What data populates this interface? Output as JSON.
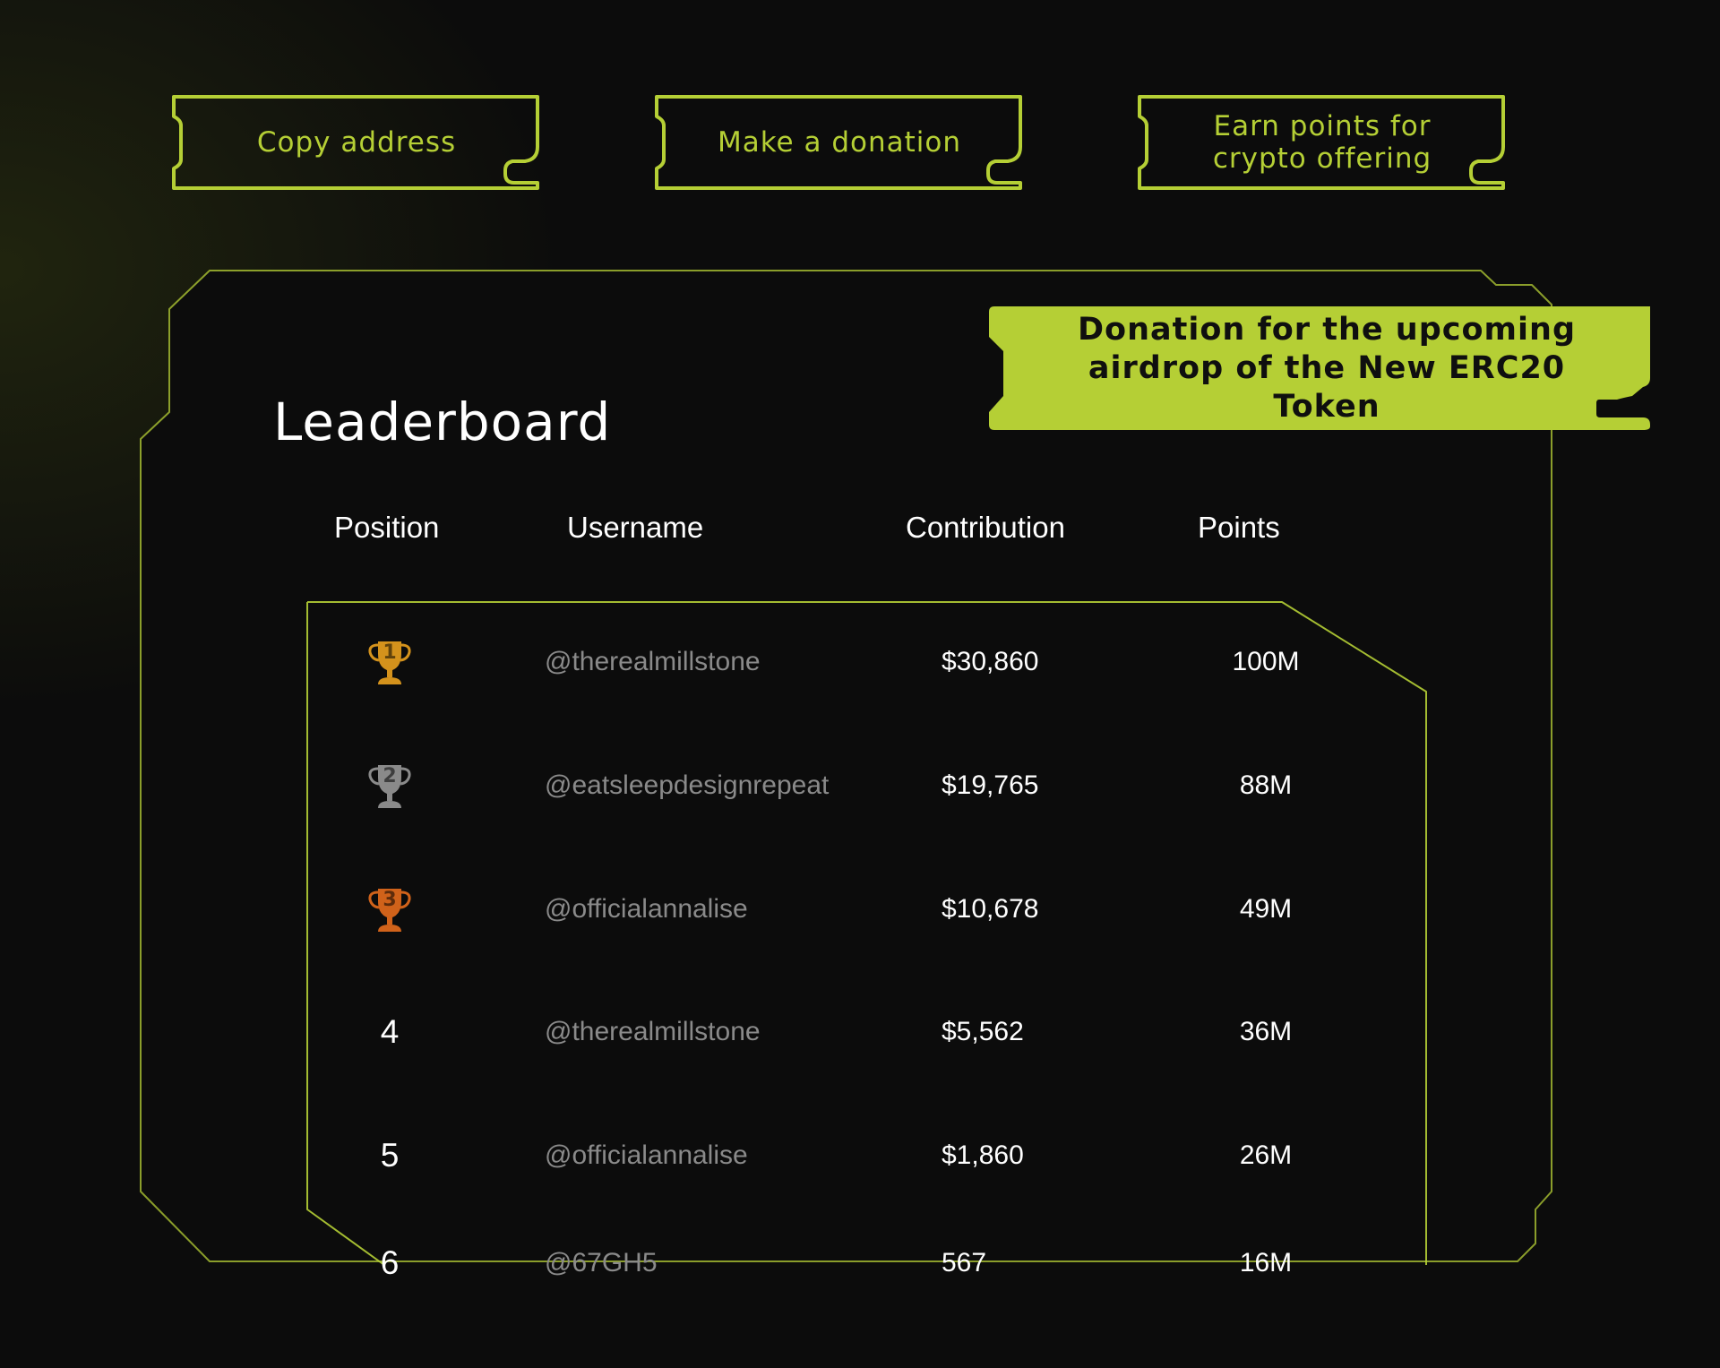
{
  "toolbar": {
    "copy_label": "Copy address",
    "donate_label": "Make a donation",
    "earn_label": "Earn points for\ncrypto offering"
  },
  "banner": {
    "text": "Donation for the upcoming\nairdrop of the New ERC20 Token"
  },
  "leaderboard": {
    "title": "Leaderboard",
    "columns": {
      "position": "Position",
      "username": "Username",
      "contribution": "Contribution",
      "points": "Points"
    },
    "rows": [
      {
        "position": "1",
        "medal": "gold",
        "username": "@therealmillstone",
        "contribution": "$30,860",
        "points": "100M"
      },
      {
        "position": "2",
        "medal": "silver",
        "username": "@eatsleepdesignrepeat",
        "contribution": "$19,765",
        "points": "88M"
      },
      {
        "position": "3",
        "medal": "bronze",
        "username": "@officialannalise",
        "contribution": "$10,678",
        "points": "49M"
      },
      {
        "position": "4",
        "medal": "",
        "username": "@therealmillstone",
        "contribution": "$5,562",
        "points": "36M"
      },
      {
        "position": "5",
        "medal": "",
        "username": "@officialannalise",
        "contribution": "$1,860",
        "points": "26M"
      },
      {
        "position": "6",
        "medal": "",
        "username": "@67GH5",
        "contribution": "567",
        "points": "16M"
      }
    ]
  },
  "icons": {
    "trophy": "trophy-icon"
  },
  "colors": {
    "accent": "#b5cf35",
    "background": "#0c0c0c",
    "gold": "#d4921c",
    "silver": "#8a8a8a",
    "bronze": "#d0621a",
    "username_text": "#8a8a8a"
  }
}
